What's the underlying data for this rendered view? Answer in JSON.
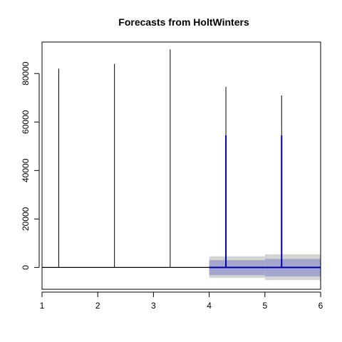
{
  "chart_data": {
    "type": "line",
    "title": "Forecasts from HoltWinters",
    "xlabel": "",
    "ylabel": "",
    "xlim": [
      1,
      6
    ],
    "ylim": [
      -9000,
      93000
    ],
    "x_ticks": [
      1,
      2,
      3,
      4,
      5,
      6
    ],
    "y_ticks": [
      0,
      20000,
      40000,
      60000,
      80000
    ],
    "grid": false,
    "legend": "none",
    "colors": {
      "observed": "#000000",
      "forecast": "#0000aa",
      "interval_80": "#a3a6cf",
      "interval_95": "#d4d4d4"
    },
    "observed": {
      "baseline": 0,
      "spikes": [
        {
          "x": 1.3,
          "y": 82000
        },
        {
          "x": 2.3,
          "y": 84000
        },
        {
          "x": 3.3,
          "y": 90000
        },
        {
          "x": 4.3,
          "y": 74500
        },
        {
          "x": 5.3,
          "y": 71000
        }
      ],
      "x_end": 6
    },
    "forecast": {
      "baseline": 0,
      "x_start": 4,
      "x_end": 6,
      "spikes": [
        {
          "x": 4.3,
          "y": 54500
        },
        {
          "x": 5.3,
          "y": 54500
        }
      ]
    },
    "intervals": [
      {
        "x_start": 4,
        "x_end": 5,
        "lo80": -3200,
        "hi80": 3000,
        "lo95": -4300,
        "hi95": 4600
      },
      {
        "x_start": 5,
        "x_end": 6,
        "lo80": -3700,
        "hi80": 3500,
        "lo95": -5200,
        "hi95": 5400
      }
    ]
  }
}
